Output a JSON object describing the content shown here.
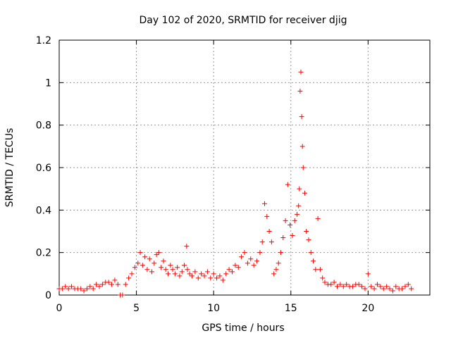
{
  "chart_data": {
    "type": "scatter",
    "title": "Day 102 of 2020, SRMTID for receiver djig",
    "xlabel": "GPS time / hours",
    "ylabel": "SRMTID / TECUs",
    "xlim": [
      0,
      24
    ],
    "ylim": [
      0,
      1.2
    ],
    "xticks": [
      0,
      5,
      10,
      15,
      20
    ],
    "xtick_labels": [
      "0",
      "5",
      "10",
      "15",
      "20"
    ],
    "yticks": [
      0,
      0.2,
      0.4,
      0.6,
      0.8,
      1,
      1.2
    ],
    "ytick_labels": [
      "0",
      "0.2",
      "0.4",
      "0.6",
      "0.8",
      "1",
      "1.2"
    ],
    "grid": true,
    "marker": "+",
    "series": [
      {
        "name": "SRMTID",
        "color": "#ff0000",
        "x": [
          0.0,
          0.2,
          0.4,
          0.6,
          0.8,
          1.0,
          1.2,
          1.4,
          1.6,
          1.8,
          2.0,
          2.2,
          2.4,
          2.6,
          2.8,
          3.0,
          3.2,
          3.4,
          3.6,
          3.8,
          3.95,
          4.1,
          4.3,
          4.5,
          4.7,
          4.9,
          5.1,
          5.25,
          5.4,
          5.55,
          5.7,
          5.85,
          6.0,
          6.15,
          6.3,
          6.45,
          6.6,
          6.75,
          6.9,
          7.05,
          7.2,
          7.35,
          7.5,
          7.65,
          7.8,
          7.95,
          8.1,
          8.25,
          8.3,
          8.45,
          8.6,
          8.8,
          9.0,
          9.2,
          9.4,
          9.6,
          9.8,
          10.0,
          10.2,
          10.4,
          10.6,
          10.8,
          11.0,
          11.2,
          11.4,
          11.6,
          11.8,
          12.0,
          12.2,
          12.4,
          12.6,
          12.8,
          13.0,
          13.15,
          13.3,
          13.45,
          13.6,
          13.75,
          13.9,
          14.05,
          14.2,
          14.35,
          14.5,
          14.65,
          14.8,
          14.95,
          15.1,
          15.25,
          15.4,
          15.5,
          15.55,
          15.6,
          15.65,
          15.7,
          15.75,
          15.8,
          15.9,
          16.0,
          16.15,
          16.3,
          16.45,
          16.6,
          16.75,
          16.9,
          17.05,
          17.2,
          17.4,
          17.6,
          17.8,
          18.0,
          18.2,
          18.4,
          18.6,
          18.8,
          19.0,
          19.2,
          19.4,
          19.6,
          19.8,
          20.0,
          20.2,
          20.4,
          20.6,
          20.8,
          21.0,
          21.2,
          21.4,
          21.6,
          21.8,
          22.0,
          22.2,
          22.4,
          22.6,
          22.8
        ],
        "y": [
          0.03,
          0.03,
          0.04,
          0.03,
          0.04,
          0.03,
          0.03,
          0.03,
          0.02,
          0.03,
          0.04,
          0.03,
          0.05,
          0.04,
          0.05,
          0.06,
          0.06,
          0.05,
          0.07,
          0.05,
          0.0,
          0.0,
          0.05,
          0.08,
          0.1,
          0.13,
          0.15,
          0.2,
          0.14,
          0.18,
          0.12,
          0.17,
          0.11,
          0.15,
          0.19,
          0.2,
          0.13,
          0.16,
          0.12,
          0.1,
          0.14,
          0.12,
          0.1,
          0.13,
          0.09,
          0.11,
          0.14,
          0.23,
          0.12,
          0.1,
          0.09,
          0.11,
          0.08,
          0.1,
          0.09,
          0.11,
          0.08,
          0.1,
          0.08,
          0.09,
          0.07,
          0.1,
          0.12,
          0.11,
          0.14,
          0.13,
          0.18,
          0.2,
          0.15,
          0.17,
          0.14,
          0.16,
          0.2,
          0.25,
          0.43,
          0.37,
          0.3,
          0.25,
          0.1,
          0.12,
          0.15,
          0.2,
          0.27,
          0.35,
          0.52,
          0.33,
          0.28,
          0.35,
          0.38,
          0.42,
          0.5,
          0.96,
          1.05,
          0.84,
          0.7,
          0.6,
          0.48,
          0.3,
          0.26,
          0.2,
          0.16,
          0.12,
          0.36,
          0.12,
          0.08,
          0.06,
          0.05,
          0.05,
          0.06,
          0.04,
          0.05,
          0.04,
          0.05,
          0.04,
          0.04,
          0.05,
          0.05,
          0.04,
          0.03,
          0.1,
          0.04,
          0.03,
          0.05,
          0.04,
          0.03,
          0.04,
          0.03,
          0.02,
          0.04,
          0.03,
          0.03,
          0.04,
          0.05,
          0.03
        ]
      }
    ]
  }
}
